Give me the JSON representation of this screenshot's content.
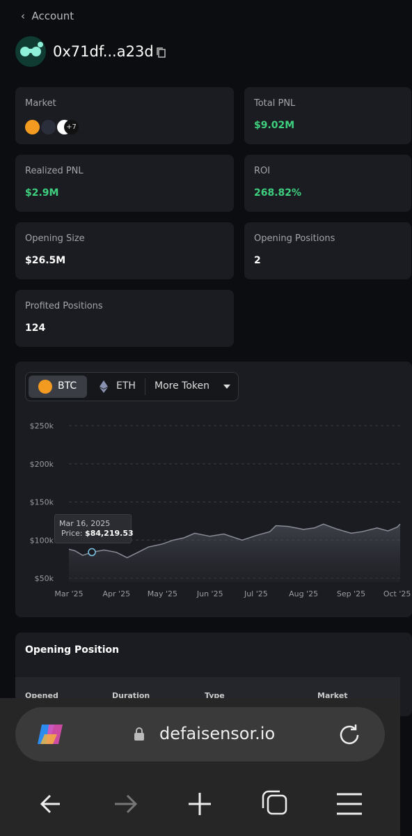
{
  "header": {
    "back": "Account",
    "address": "0x71df...a23d"
  },
  "stats": [
    {
      "label": "Market",
      "value": "+7"
    },
    {
      "label": "Total PNL",
      "value": "$9.02M"
    },
    {
      "label": "Realized PNL",
      "value": "$2.9M"
    },
    {
      "label": "ROI",
      "value": "268.82%"
    },
    {
      "label": "Opening Size",
      "value": "$26.5M"
    },
    {
      "label": "Opening Positions",
      "value": "2"
    },
    {
      "label": "Profited Positions",
      "value": "124"
    }
  ],
  "tabs": [
    "BTC",
    "ETH",
    "More Token"
  ],
  "chart_data": {
    "type": "area",
    "color": "#8a8d98",
    "x": [
      "2025-03-01",
      "2025-03-05",
      "2025-03-10",
      "2025-03-16",
      "2025-03-24",
      "2025-04-01",
      "2025-04-08",
      "2025-04-15",
      "2025-04-22",
      "2025-05-01",
      "2025-05-08",
      "2025-05-15",
      "2025-05-22",
      "2025-06-01",
      "2025-06-10",
      "2025-06-22",
      "2025-07-01",
      "2025-07-10",
      "2025-07-14",
      "2025-07-22",
      "2025-08-01",
      "2025-08-08",
      "2025-08-14",
      "2025-08-22",
      "2025-09-01",
      "2025-09-08",
      "2025-09-18",
      "2025-09-25",
      "2025-10-01",
      "2025-10-03"
    ],
    "values": [
      88000,
      86000,
      80000,
      84219.53,
      87000,
      84000,
      77000,
      84000,
      91000,
      95000,
      100000,
      103000,
      109000,
      105000,
      108000,
      100000,
      106000,
      111000,
      119000,
      118000,
      114000,
      116000,
      121000,
      115000,
      109000,
      111000,
      116000,
      112000,
      117000,
      121000
    ],
    "xlim": [
      "2025-03-01",
      "2025-10-03"
    ],
    "xticks": [
      {
        "value": "2025-03-01",
        "label": "Mar '25"
      },
      {
        "value": "2025-04-01",
        "label": "Apr '25"
      },
      {
        "value": "2025-05-01",
        "label": "May '25"
      },
      {
        "value": "2025-06-01",
        "label": "Jun '25"
      },
      {
        "value": "2025-07-01",
        "label": "Jul '25"
      },
      {
        "value": "2025-08-01",
        "label": "Aug '25"
      },
      {
        "value": "2025-09-01",
        "label": "Sep '25"
      },
      {
        "value": "2025-10-01",
        "label": "Oct '25"
      }
    ],
    "ylim": [
      45000,
      265000
    ],
    "yticks": [
      {
        "value": 50000,
        "label": "$50k"
      },
      {
        "value": 100000,
        "label": "$100k"
      },
      {
        "value": 150000,
        "label": "$150k"
      },
      {
        "value": 200000,
        "label": "$200k"
      },
      {
        "value": 250000,
        "label": "$250k"
      }
    ],
    "grid": true,
    "tooltip": {
      "date": "Mar 16, 2025",
      "x": "2025-03-16",
      "price_label": "Price:",
      "value": 84219.53,
      "value_label": "$84,219.53"
    }
  },
  "positions": {
    "title": "Opening Position",
    "columns": [
      "Opened",
      "Duration",
      "Type",
      "Market"
    ]
  },
  "browser": {
    "url": "defaisensor.io"
  }
}
